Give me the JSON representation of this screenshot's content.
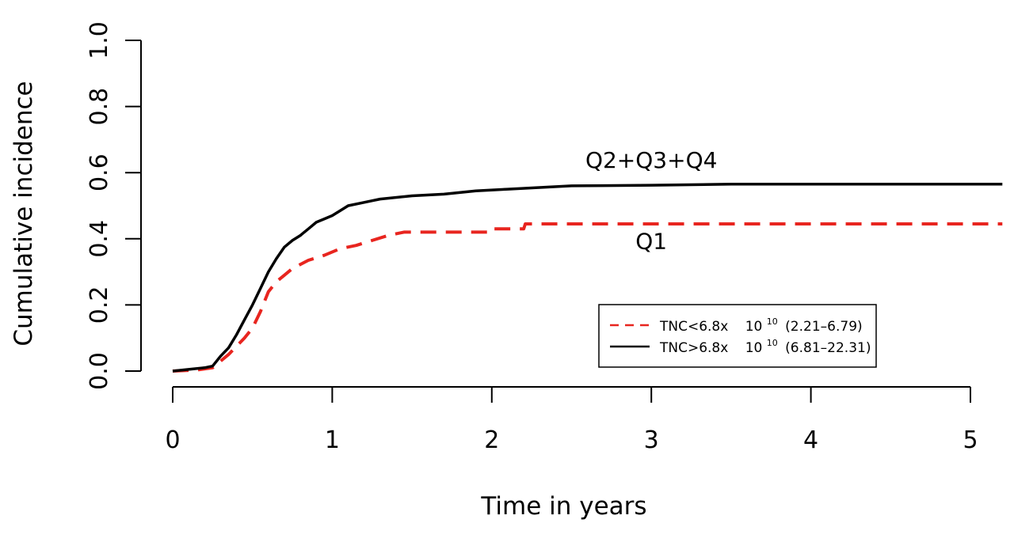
{
  "chart_data": {
    "type": "line",
    "title": "",
    "xlabel": "Time in years",
    "ylabel": "Cumulative incidence",
    "xlim": [
      0,
      5.2
    ],
    "ylim": [
      0,
      1.0
    ],
    "x_ticks": [
      "0",
      "1",
      "2",
      "3",
      "4",
      "5"
    ],
    "x_tick_values": [
      0,
      1,
      2,
      3,
      4,
      5
    ],
    "y_ticks": [
      "0.0",
      "0.2",
      "0.4",
      "0.6",
      "0.8",
      "1.0"
    ],
    "y_tick_values": [
      0,
      0.2,
      0.4,
      0.6,
      0.8,
      1.0
    ],
    "grid": false,
    "legend_position": "lower-right",
    "annotations": [
      {
        "text": "Q2+Q3+Q4",
        "x": 3.0,
        "y": 0.615
      },
      {
        "text": "Q1",
        "x": 3.0,
        "y": 0.37
      }
    ],
    "legend": [
      {
        "name": "TNC<6.8x",
        "power_base": "10",
        "power_exp": "10",
        "range": "(2.21–6.79)",
        "color": "#e8251f",
        "dash": "dashed"
      },
      {
        "name": "TNC>6.8x",
        "power_base": "10",
        "power_exp": "10",
        "range": "(6.81–22.31)",
        "color": "#000000",
        "dash": "solid"
      }
    ],
    "series": [
      {
        "color": "#e8251f",
        "dash": "dashed",
        "x": [
          0,
          0.15,
          0.25,
          0.3,
          0.35,
          0.4,
          0.45,
          0.5,
          0.55,
          0.6,
          0.65,
          0.7,
          0.75,
          0.85,
          0.95,
          1.05,
          1.15,
          1.25,
          1.35,
          1.45,
          1.6,
          1.8,
          1.99,
          2.0,
          2.2,
          2.21,
          2.5,
          3.0,
          3.5,
          4.0,
          4.5,
          5.0,
          5.2
        ],
        "y": [
          0,
          0.003,
          0.01,
          0.03,
          0.05,
          0.075,
          0.1,
          0.13,
          0.18,
          0.24,
          0.27,
          0.29,
          0.31,
          0.335,
          0.35,
          0.37,
          0.38,
          0.395,
          0.41,
          0.42,
          0.42,
          0.42,
          0.42,
          0.43,
          0.43,
          0.445,
          0.445,
          0.445,
          0.445,
          0.445,
          0.445,
          0.445,
          0.445
        ]
      },
      {
        "color": "#000000",
        "dash": "solid",
        "x": [
          0,
          0.1,
          0.2,
          0.25,
          0.3,
          0.35,
          0.4,
          0.45,
          0.5,
          0.55,
          0.6,
          0.65,
          0.7,
          0.75,
          0.8,
          0.85,
          0.9,
          0.95,
          1.0,
          1.05,
          1.1,
          1.2,
          1.3,
          1.5,
          1.7,
          1.9,
          2.1,
          2.3,
          2.5,
          3.0,
          3.5,
          4.0,
          4.5,
          5.0,
          5.2
        ],
        "y": [
          0,
          0.005,
          0.01,
          0.015,
          0.045,
          0.07,
          0.11,
          0.155,
          0.2,
          0.25,
          0.3,
          0.34,
          0.375,
          0.395,
          0.41,
          0.43,
          0.45,
          0.46,
          0.47,
          0.485,
          0.5,
          0.51,
          0.52,
          0.53,
          0.535,
          0.545,
          0.55,
          0.555,
          0.56,
          0.562,
          0.565,
          0.565,
          0.565,
          0.565,
          0.565
        ]
      }
    ]
  }
}
